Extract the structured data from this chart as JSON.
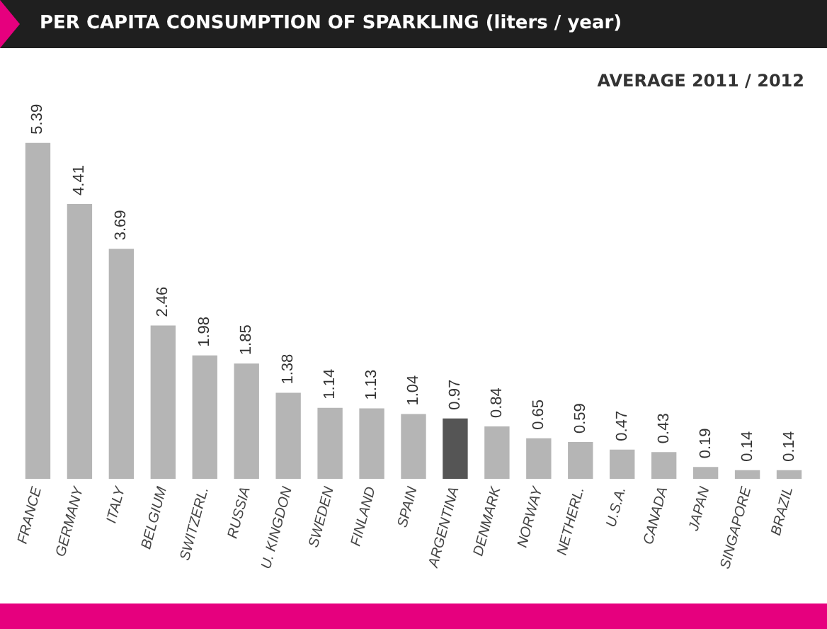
{
  "chart_data": {
    "type": "bar",
    "title": "PER CAPITA CONSUMPTION OF SPARKLING (liters / year)",
    "annotations": [
      "AVERAGE 2011 / 2012"
    ],
    "categories": [
      "FRANCE",
      "GERMANY",
      "ITALY",
      "BELGIUM",
      "SWITZERL.",
      "RUSSIA",
      "U. KINGDON",
      "SWEDEN",
      "FINLAND",
      "SPAIN",
      "ARGENTINA",
      "DENMARK",
      "NORWAY",
      "NETHERL.",
      "U.S.A.",
      "CANADA",
      "JAPAN",
      "SINGAPORE",
      "BRAZIL"
    ],
    "values": [
      5.39,
      4.41,
      3.69,
      2.46,
      1.98,
      1.85,
      1.38,
      1.14,
      1.13,
      1.04,
      0.97,
      0.84,
      0.65,
      0.59,
      0.47,
      0.43,
      0.19,
      0.14,
      0.14
    ],
    "colors": [
      "#b5b5b5",
      "#b5b5b5",
      "#b5b5b5",
      "#b5b5b5",
      "#b5b5b5",
      "#b5b5b5",
      "#b5b5b5",
      "#b5b5b5",
      "#b5b5b5",
      "#b5b5b5",
      "#555555",
      "#b5b5b5",
      "#b5b5b5",
      "#b5b5b5",
      "#b5b5b5",
      "#b5b5b5",
      "#b5b5b5",
      "#b5b5b5",
      "#b5b5b5"
    ],
    "data_labels": true
  }
}
